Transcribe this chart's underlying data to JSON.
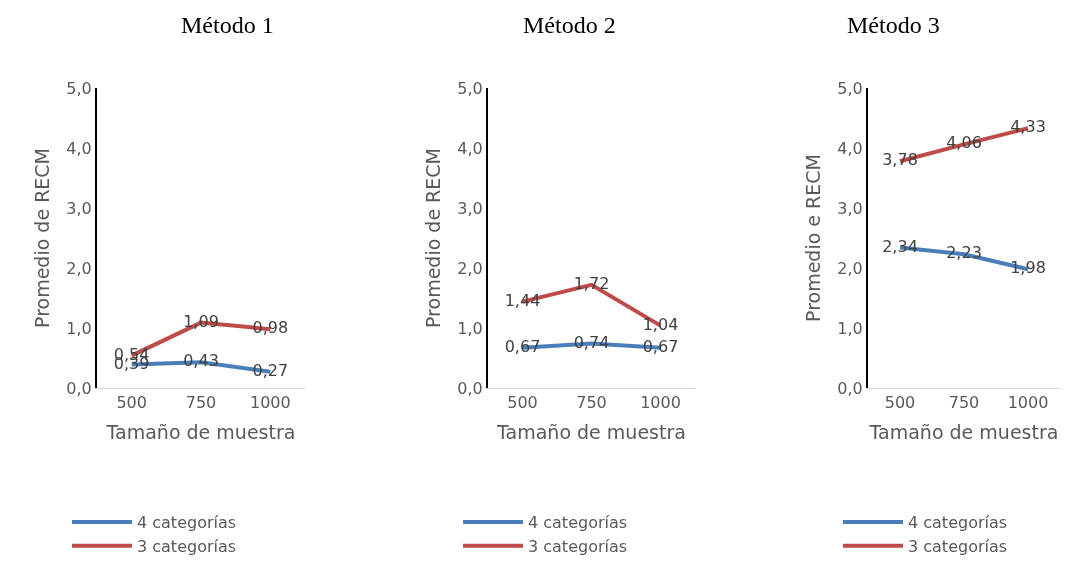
{
  "chart_data": [
    {
      "type": "line",
      "title": "Método 1",
      "xlabel": "Tamaño de muestra",
      "ylabel": "Promedio de RECM",
      "categories": [
        "500",
        "750",
        "1000"
      ],
      "ylim": [
        0,
        5
      ],
      "yticks": [
        {
          "value": 0,
          "label": "0,0"
        },
        {
          "value": 1,
          "label": "1,0"
        },
        {
          "value": 2,
          "label": "2,0"
        },
        {
          "value": 3,
          "label": "3,0"
        },
        {
          "value": 4,
          "label": "4,0"
        },
        {
          "value": 5,
          "label": "5,0"
        }
      ],
      "legend": "bottom",
      "series": [
        {
          "name": "4 categorías",
          "color": "#4a7ebb",
          "values": [
            0.39,
            0.43,
            0.27
          ],
          "value_labels": [
            "0,39",
            "0,43",
            "0,27"
          ]
        },
        {
          "name": "3 categorías",
          "color": "#be4b48",
          "values": [
            0.54,
            1.09,
            0.98
          ],
          "value_labels": [
            "0,54",
            "1,09",
            "0,98"
          ]
        }
      ]
    },
    {
      "type": "line",
      "title": "Método 2",
      "xlabel": "Tamaño de muestra",
      "ylabel": "Promedio de RECM",
      "categories": [
        "500",
        "750",
        "1000"
      ],
      "ylim": [
        0,
        5
      ],
      "yticks": [
        {
          "value": 0,
          "label": "0,0"
        },
        {
          "value": 1,
          "label": "1,0"
        },
        {
          "value": 2,
          "label": "2,0"
        },
        {
          "value": 3,
          "label": "3,0"
        },
        {
          "value": 4,
          "label": "4,0"
        },
        {
          "value": 5,
          "label": "5,0"
        }
      ],
      "legend": "bottom",
      "series": [
        {
          "name": "4 categorías",
          "color": "#4a7ebb",
          "values": [
            0.67,
            0.74,
            0.67
          ],
          "value_labels": [
            "0,67",
            "0,74",
            "0,67"
          ]
        },
        {
          "name": "3 categorías",
          "color": "#be4b48",
          "values": [
            1.44,
            1.72,
            1.04
          ],
          "value_labels": [
            "1,44",
            "1,72",
            "1,04"
          ]
        }
      ]
    },
    {
      "type": "line",
      "title": "Método 3",
      "xlabel": "Tamaño de muestra",
      "ylabel": "Promedio e RECM",
      "categories": [
        "500",
        "750",
        "1000"
      ],
      "ylim": [
        0,
        5
      ],
      "yticks": [
        {
          "value": 0,
          "label": "0,0"
        },
        {
          "value": 1,
          "label": "1,0"
        },
        {
          "value": 2,
          "label": "2,0"
        },
        {
          "value": 3,
          "label": "3,0"
        },
        {
          "value": 4,
          "label": "4,0"
        },
        {
          "value": 5,
          "label": "5,0"
        }
      ],
      "legend": "bottom",
      "series": [
        {
          "name": "4 categorías",
          "color": "#4a7ebb",
          "values": [
            2.34,
            2.23,
            1.98
          ],
          "value_labels": [
            "2,34",
            "2,23",
            "1,98"
          ]
        },
        {
          "name": "3 categorías",
          "color": "#be4b48",
          "values": [
            3.78,
            4.06,
            4.33
          ],
          "value_labels": [
            "3,78",
            "4,06",
            "4,33"
          ]
        }
      ]
    }
  ]
}
